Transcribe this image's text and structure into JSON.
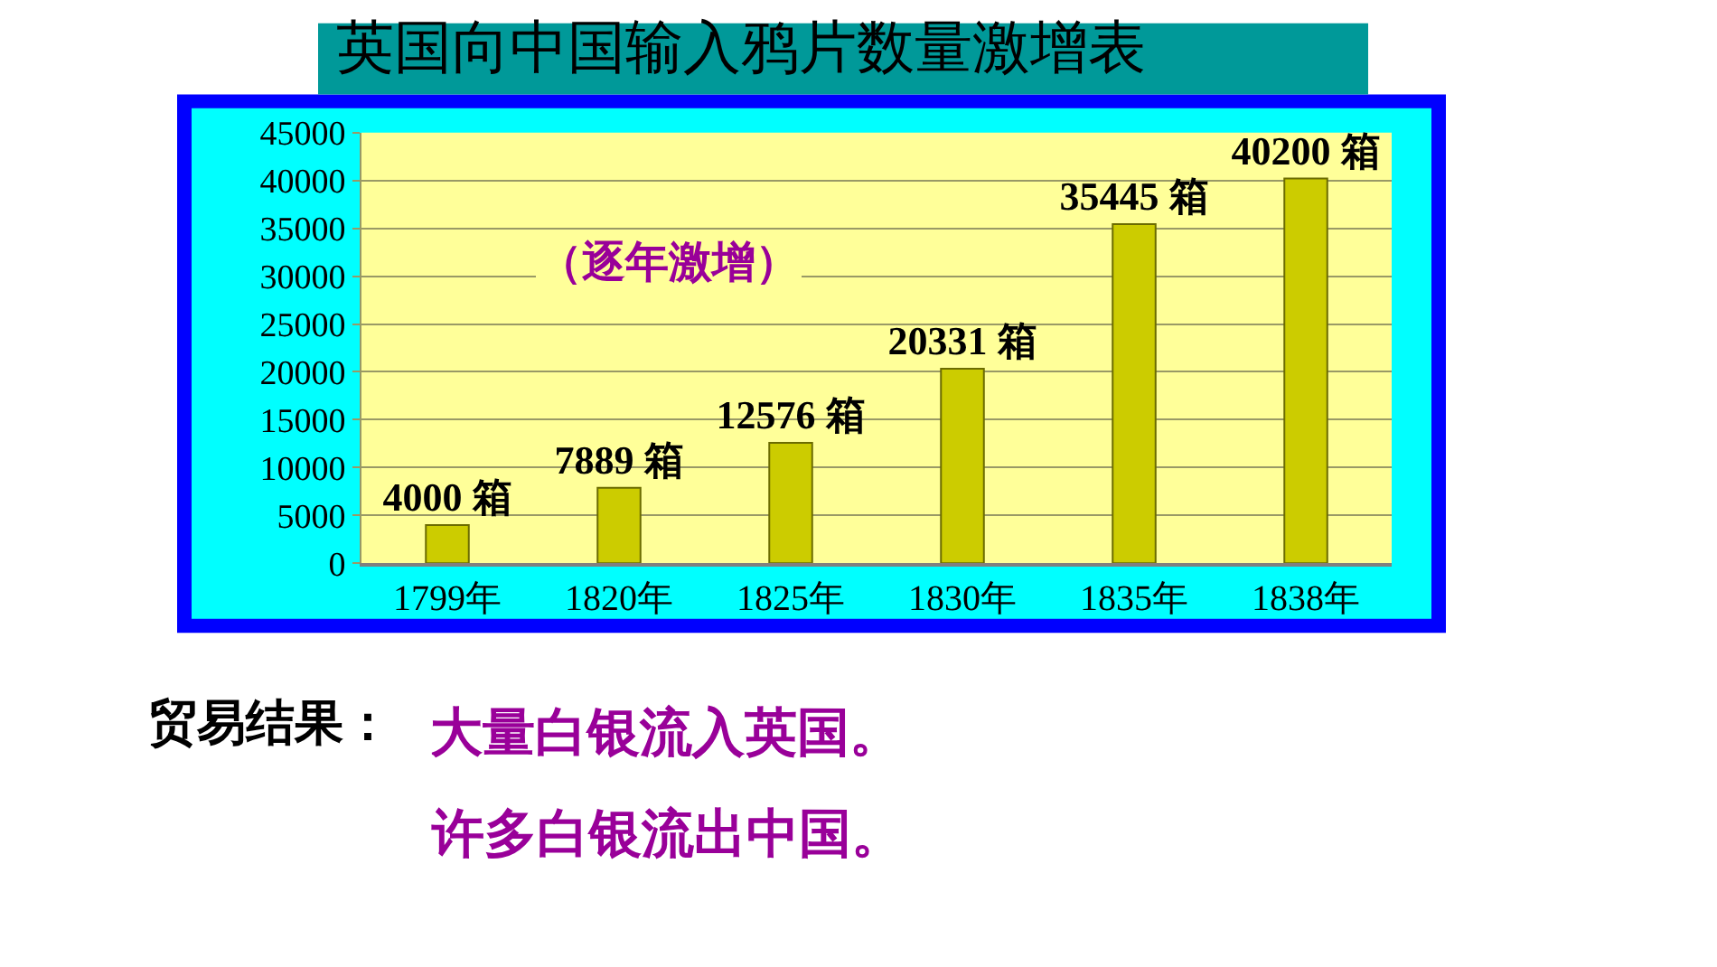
{
  "chart_data": {
    "type": "bar",
    "title": "英国向中国输入鸦片数量激增表",
    "categories": [
      "1799年",
      "1820年",
      "1825年",
      "1830年",
      "1835年",
      "1838年"
    ],
    "values": [
      4000,
      7889,
      12576,
      20331,
      35445,
      40200
    ],
    "value_labels": [
      "4000 箱",
      "7889 箱",
      "12576 箱",
      "20331 箱",
      "35445 箱",
      "40200 箱"
    ],
    "color": "#cccc00",
    "ylim": [
      0,
      45000
    ],
    "yticks": [
      0,
      5000,
      10000,
      15000,
      20000,
      25000,
      30000,
      35000,
      40000,
      45000
    ],
    "grid": "y",
    "annotations": [
      "（逐年激增）",
      "贸易结果：",
      "大量白银流入英国。",
      "许多白银流出中国。"
    ]
  }
}
